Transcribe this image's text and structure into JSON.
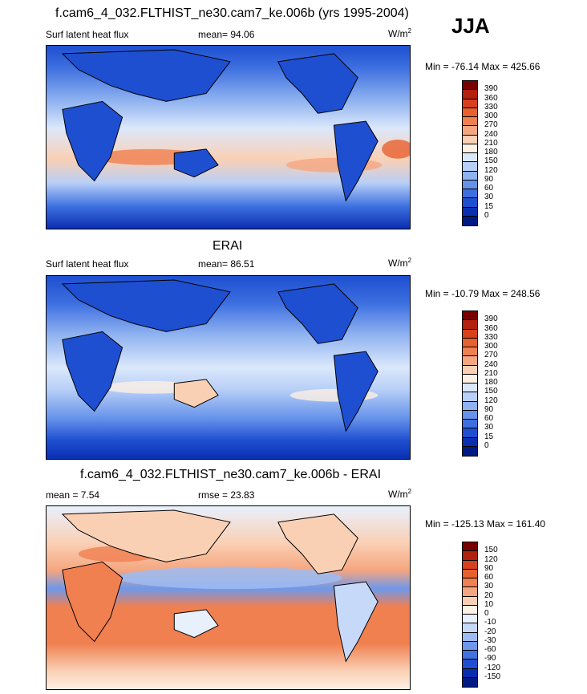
{
  "season": "JJA",
  "panels": [
    {
      "title": "f.cam6_4_032.FLTHIST_ne30.cam7_ke.006b (yrs 1995-2004)",
      "variable": "Surf latent heat flux",
      "stat_label": "mean=",
      "stat_value": "94.06",
      "units_base": "W/m",
      "units_exp": "2",
      "minmax": "Min = -76.14 Max = 425.66",
      "levels": [
        "390",
        "360",
        "330",
        "300",
        "270",
        "240",
        "210",
        "180",
        "150",
        "120",
        "90",
        "60",
        "30",
        "15",
        "0"
      ],
      "colors": [
        "#7a0000",
        "#b3200e",
        "#d8401c",
        "#e8602e",
        "#f08050",
        "#f5a680",
        "#fad0b5",
        "#fdf0e4",
        "#dbe8fb",
        "#b8cff7",
        "#8fb2f0",
        "#6592ea",
        "#3d6fe0",
        "#1e4fd0",
        "#0a2fb0",
        "#001a85"
      ]
    },
    {
      "title": "ERAI",
      "variable": "Surf latent heat flux",
      "stat_label": "mean=",
      "stat_value": "86.51",
      "units_base": "W/m",
      "units_exp": "2",
      "minmax": "Min = -10.79 Max = 248.56",
      "levels": [
        "390",
        "360",
        "330",
        "300",
        "270",
        "240",
        "210",
        "180",
        "150",
        "120",
        "90",
        "60",
        "30",
        "15",
        "0"
      ],
      "colors": [
        "#7a0000",
        "#b3200e",
        "#d8401c",
        "#e8602e",
        "#f08050",
        "#f5a680",
        "#fad0b5",
        "#fdf0e4",
        "#dbe8fb",
        "#b8cff7",
        "#8fb2f0",
        "#6592ea",
        "#3d6fe0",
        "#1e4fd0",
        "#0a2fb0",
        "#001a85"
      ]
    },
    {
      "title": "f.cam6_4_032.FLTHIST_ne30.cam7_ke.006b - ERAI",
      "left_label": "mean =",
      "left_value": "7.54",
      "stat_label": "rmse =",
      "stat_value": "23.83",
      "units_base": "W/m",
      "units_exp": "2",
      "minmax": "Min = -125.13 Max = 161.40",
      "levels": [
        "150",
        "120",
        "90",
        "60",
        "30",
        "20",
        "10",
        "0",
        "-10",
        "-20",
        "-30",
        "-60",
        "-90",
        "-120",
        "-150"
      ],
      "colors": [
        "#7a0000",
        "#b3200e",
        "#d8401c",
        "#e8602e",
        "#f08050",
        "#f5a680",
        "#fad0b5",
        "#fdf0e4",
        "#e8f0fd",
        "#c7d9f8",
        "#9dbcf2",
        "#6f98eb",
        "#4271e1",
        "#1f4ed0",
        "#0a2db0",
        "#001a85"
      ]
    }
  ]
}
